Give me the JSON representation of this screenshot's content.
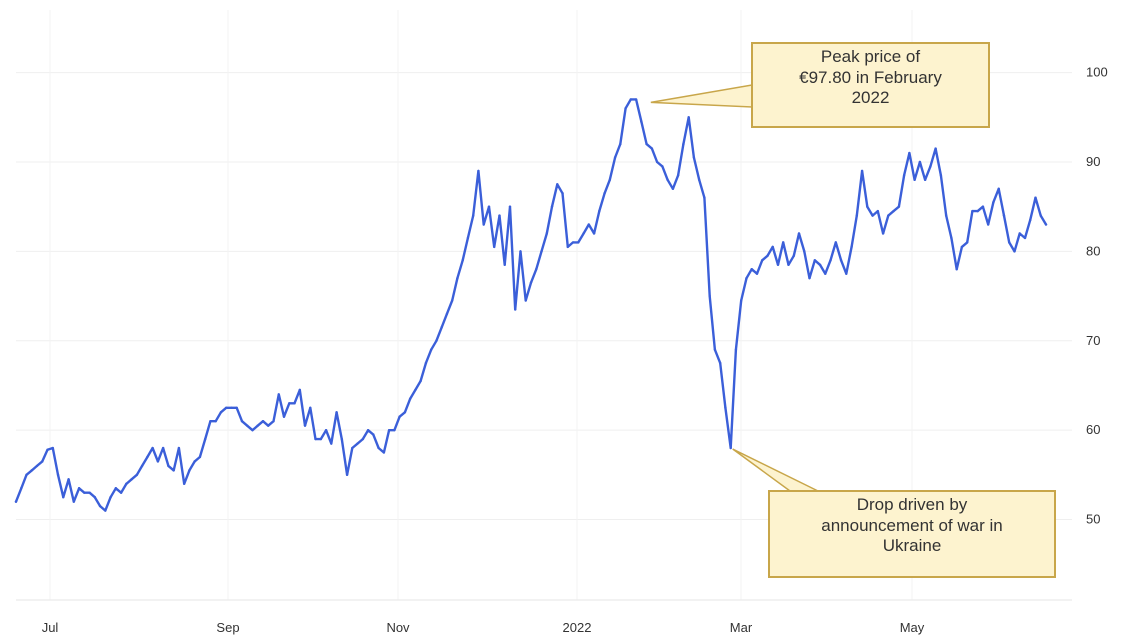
{
  "chart_data": {
    "type": "line",
    "x_tick_labels": [
      "Jul",
      "Sep",
      "Nov",
      "2022",
      "Mar",
      "May"
    ],
    "y_ticks": [
      50,
      60,
      70,
      80,
      90,
      100
    ],
    "ylim": [
      41,
      107
    ],
    "grid": true,
    "y_axis_side": "right",
    "line_color": "#3b5fd9",
    "series": [
      {
        "values": [
          52.0,
          53.5,
          55.0,
          55.5,
          56.0,
          56.5,
          57.8,
          58.0,
          55.0,
          52.5,
          54.5,
          52.0,
          53.5,
          53.0,
          53.0,
          52.5,
          51.5,
          51.0,
          52.5,
          53.5,
          53.0,
          54.0,
          54.5,
          55.0,
          56.0,
          57.0,
          58.0,
          56.5,
          58.0,
          56.0,
          55.5,
          58.0,
          54.0,
          55.5,
          56.5,
          57.0,
          59.0,
          61.0,
          61.0,
          62.0,
          62.5,
          62.5,
          62.5,
          61.0,
          60.5,
          60.0,
          60.5,
          61.0,
          60.5,
          61.0,
          64.0,
          61.5,
          63.0,
          63.0,
          64.5,
          60.5,
          62.5,
          59.0,
          59.0,
          60.0,
          58.5,
          62.0,
          59.0,
          55.0,
          58.0,
          58.5,
          59.0,
          60.0,
          59.5,
          58.0,
          57.5,
          60.0,
          60.0,
          61.5,
          62.0,
          63.5,
          64.5,
          65.5,
          67.5,
          69.0,
          70.0,
          71.5,
          73.0,
          74.5,
          77.0,
          79.0,
          81.5,
          84.0,
          89.0,
          83.0,
          85.0,
          80.5,
          84.0,
          78.5,
          85.0,
          73.5,
          80.0,
          74.5,
          76.5,
          78.0,
          80.0,
          82.0,
          85.0,
          87.5,
          86.5,
          80.5,
          81.0,
          81.0,
          82.0,
          83.0,
          82.0,
          84.5,
          86.5,
          88.0,
          90.5,
          92.0,
          96.0,
          97.0,
          97.0,
          94.5,
          92.0,
          91.5,
          90.0,
          89.5,
          88.0,
          87.0,
          88.5,
          92.0,
          95.0,
          90.5,
          88.0,
          86.0,
          75.0,
          69.0,
          67.5,
          62.5,
          58.0,
          69.0,
          74.5,
          77.0,
          78.0,
          77.5,
          79.0,
          79.5,
          80.5,
          78.5,
          81.0,
          78.5,
          79.5,
          82.0,
          80.0,
          77.0,
          79.0,
          78.5,
          77.5,
          79.0,
          81.0,
          79.0,
          77.5,
          80.5,
          84.0,
          89.0,
          85.0,
          84.0,
          84.5,
          82.0,
          84.0,
          84.5,
          85.0,
          88.5,
          91.0,
          88.0,
          90.0,
          88.0,
          89.5,
          91.5,
          88.5,
          84.0,
          81.5,
          78.0,
          80.5,
          81.0,
          84.5,
          84.5,
          85.0,
          83.0,
          85.5,
          87.0,
          84.0,
          81.0,
          80.0,
          82.0,
          81.5,
          83.5,
          86.0,
          84.0,
          83.0
        ]
      }
    ],
    "annotations": [
      {
        "id": "peak",
        "lines": [
          "Peak price of",
          "€97.80 in February",
          "2022"
        ],
        "point_index": 117
      },
      {
        "id": "drop",
        "lines": [
          "Drop driven by",
          "announcement of war in",
          "Ukraine"
        ],
        "point_index": 136
      }
    ]
  }
}
